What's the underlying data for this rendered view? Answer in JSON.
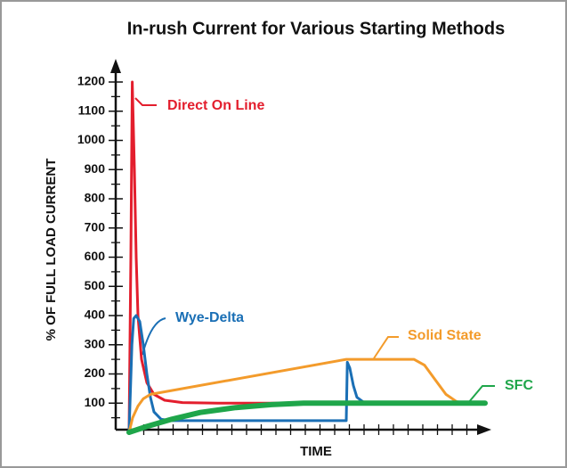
{
  "chart_data": {
    "type": "line",
    "title": "In-rush Current for Various Starting Methods",
    "ylabel": "% OF FULL LOAD CURRENT",
    "xlabel": "TIME",
    "ylim": [
      0,
      1200
    ],
    "xlim": [
      0,
      100
    ],
    "yticks": [
      100,
      200,
      300,
      400,
      500,
      600,
      700,
      800,
      900,
      1000,
      1100,
      1200
    ],
    "series": [
      {
        "name": "Direct On Line",
        "color": "#e31e2d",
        "x": [
          0,
          0.5,
          0.9,
          1.5,
          2,
          2.5,
          3.5,
          5,
          7,
          10,
          15,
          25,
          62
        ],
        "values": [
          0,
          600,
          1200,
          900,
          600,
          400,
          250,
          170,
          130,
          110,
          102,
          100,
          100
        ]
      },
      {
        "name": "Wye-Delta",
        "color": "#1a6fb5",
        "x": [
          0,
          0.8,
          1.3,
          2,
          3,
          4,
          5,
          6,
          7,
          9,
          12,
          61,
          61.3,
          62,
          63,
          64,
          66,
          70
        ],
        "values": [
          0,
          300,
          390,
          400,
          380,
          300,
          200,
          120,
          70,
          45,
          40,
          40,
          240,
          220,
          160,
          120,
          102,
          100
        ]
      },
      {
        "name": "Solid State",
        "color": "#f39b2b",
        "x": [
          0,
          1,
          2.5,
          4,
          6,
          61,
          80,
          83,
          86,
          89,
          92,
          95,
          100
        ],
        "values": [
          0,
          50,
          90,
          115,
          130,
          250,
          250,
          230,
          180,
          130,
          105,
          100,
          100
        ]
      },
      {
        "name": "SFC",
        "color": "#1fa64a",
        "x": [
          0,
          5,
          12,
          20,
          30,
          40,
          49,
          100
        ],
        "values": [
          0,
          20,
          45,
          68,
          85,
          95,
          100,
          100
        ]
      }
    ]
  }
}
